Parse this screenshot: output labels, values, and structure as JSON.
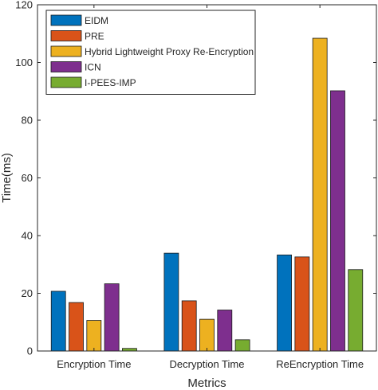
{
  "chart_data": {
    "type": "bar",
    "title": "",
    "xlabel": "Metrics",
    "ylabel": "Time(ms)",
    "ylim": [
      0,
      120
    ],
    "yticks": [
      0,
      20,
      40,
      60,
      80,
      100,
      120
    ],
    "grid": false,
    "legend_position": "top-left",
    "categories": [
      "Encryption Time",
      "Decryption Time",
      "ReEncryption Time"
    ],
    "series": [
      {
        "name": "EIDM",
        "color": "#0072BD",
        "values": [
          20.7,
          33.9,
          33.3
        ]
      },
      {
        "name": "PRE",
        "color": "#D95319",
        "values": [
          16.8,
          17.4,
          32.6
        ]
      },
      {
        "name": "Hybrid Lightweight Proxy Re-Encryption",
        "color": "#EDB120",
        "values": [
          10.6,
          11.0,
          108.4
        ]
      },
      {
        "name": "ICN",
        "color": "#7E2F8E",
        "values": [
          23.3,
          14.2,
          90.2
        ]
      },
      {
        "name": "I-PEES-IMP",
        "color": "#77AC30",
        "values": [
          0.9,
          3.9,
          28.2
        ]
      }
    ]
  }
}
